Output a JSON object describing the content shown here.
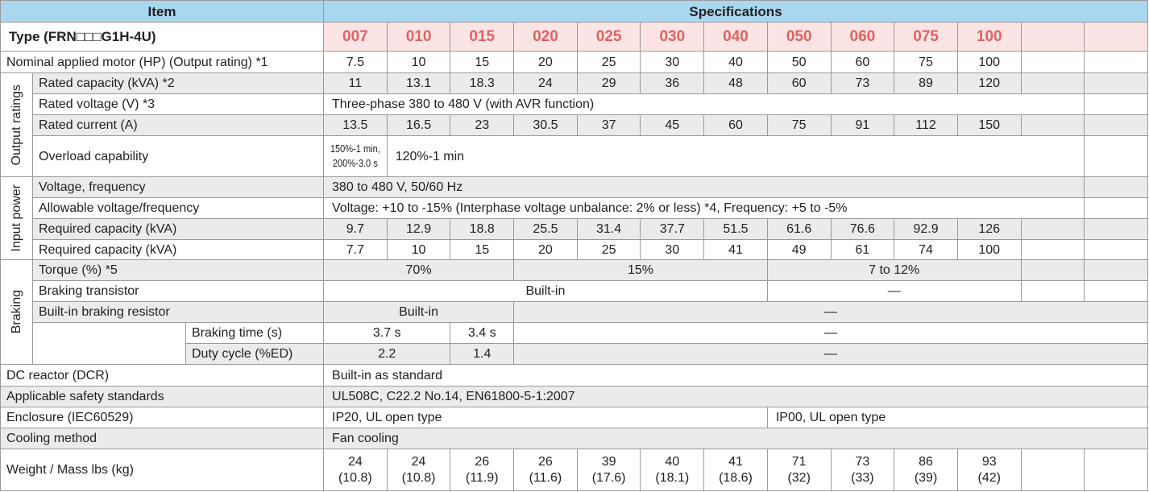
{
  "header": {
    "item": "Item",
    "specifications": "Specifications"
  },
  "type": {
    "label": "Type (FRN□□□G1H-4U)",
    "codes": [
      "007",
      "010",
      "015",
      "020",
      "025",
      "030",
      "040",
      "050",
      "060",
      "075",
      "100"
    ]
  },
  "groups": [
    "Output ratings",
    "Input power",
    "Braking"
  ],
  "rows": {
    "motor": {
      "label": "Nominal applied motor (HP) (Output rating) *1",
      "values": [
        7.5,
        10,
        15,
        20,
        25,
        30,
        40,
        50,
        60,
        75,
        100
      ]
    },
    "capacity": {
      "label": "Rated capacity (kVA) *2",
      "values": [
        11,
        13.1,
        18.3,
        24,
        29,
        36,
        48,
        60,
        73,
        89,
        120
      ]
    },
    "voltage": {
      "label": "Rated voltage (V) *3",
      "value": "Three-phase 380 to 480 V (with AVR function)"
    },
    "current": {
      "label": "Rated current (A)",
      "values": [
        13.5,
        16.5,
        23,
        30.5,
        37,
        45,
        60,
        75,
        91,
        112,
        150
      ]
    },
    "overload": {
      "label": "Overload capability",
      "low": [
        "150%-1 min,",
        "200%-3.0 s"
      ],
      "value": "120%-1 min"
    },
    "input_voltage": {
      "label": "Voltage, frequency",
      "value": "380 to 480 V, 50/60 Hz"
    },
    "allowable": {
      "label": "Allowable voltage/frequency",
      "value": "Voltage: +10 to -15% (Interphase voltage unbalance: 2% or less) *4, Frequency: +5 to -5%"
    },
    "required_1": {
      "label": "Required capacity (kVA)",
      "values": [
        9.7,
        12.9,
        18.8,
        25.5,
        31.4,
        37.7,
        51.5,
        61.6,
        76.6,
        92.9,
        126
      ]
    },
    "required_2": {
      "label": "Required capacity (kVA)",
      "values": [
        7.7,
        10,
        15,
        20,
        25,
        30,
        41,
        49,
        61,
        74,
        100
      ]
    },
    "torque": {
      "label": "Torque (%) *5",
      "values": [
        "70%",
        "15%",
        "7 to 12%"
      ]
    },
    "transistor": {
      "label": "Braking transistor",
      "values": [
        "Built-in",
        "—"
      ]
    },
    "resistor": {
      "label": "Built-in braking resistor",
      "values": [
        "Built-in",
        "—"
      ]
    },
    "braking_time": {
      "label": "Braking time (s)",
      "values": [
        "3.7 s",
        "3.4 s",
        "—"
      ]
    },
    "duty": {
      "label": "Duty cycle (%ED)",
      "values": [
        2.2,
        1.4,
        "—"
      ]
    },
    "dcr": {
      "label": "DC reactor (DCR)",
      "value": "Built-in as standard"
    },
    "safety": {
      "label": "Applicable safety standards",
      "value": "UL508C, C22.2 No.14, EN61800-5-1:2007"
    },
    "enclosure": {
      "label": "Enclosure (IEC60529)",
      "values": [
        "IP20, UL open type",
        "IP00, UL open type"
      ]
    },
    "cooling": {
      "label": "Cooling method",
      "value": "Fan cooling"
    },
    "weight": {
      "label": "Weight / Mass lbs (kg)",
      "lbs": [
        24,
        24,
        26,
        26,
        39,
        40,
        41,
        71,
        73,
        86,
        93
      ],
      "kg": [
        "(10.8)",
        "(10.8)",
        "(11.9)",
        "(11.6)",
        "(17.6)",
        "(18.1)",
        "(18.6)",
        "(32)",
        "(33)",
        "(39)",
        "(42)"
      ]
    }
  }
}
